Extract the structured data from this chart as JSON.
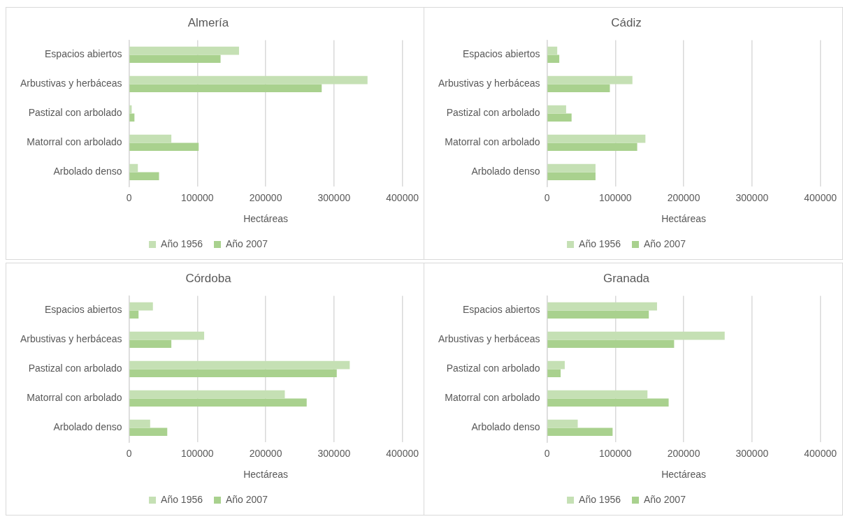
{
  "chart_data": [
    {
      "type": "bar",
      "orientation": "horizontal",
      "title": "Almería",
      "xlabel": "Hectáreas",
      "categories": [
        "Espacios abiertos",
        "Arbustivas y herbáceas",
        "Pastizal con arbolado",
        "Matorral con arbolado",
        "Arbolado denso"
      ],
      "series": [
        {
          "name": "Año 1956",
          "color": "#c5e0b4",
          "values": [
            161000,
            349000,
            4000,
            62000,
            13000
          ]
        },
        {
          "name": "Año 2007",
          "color": "#a9d18e",
          "values": [
            134000,
            282000,
            8000,
            102000,
            44000
          ]
        }
      ],
      "xlim": [
        0,
        400000
      ],
      "xticks": [
        0,
        100000,
        200000,
        300000,
        400000
      ],
      "grid": "x",
      "legend": "bottom"
    },
    {
      "type": "bar",
      "orientation": "horizontal",
      "title": "Cádiz",
      "xlabel": "Hectáreas",
      "categories": [
        "Espacios abiertos",
        "Arbustivas y herbáceas",
        "Pastizal con arbolado",
        "Matorral con arbolado",
        "Arbolado denso"
      ],
      "series": [
        {
          "name": "Año 1956",
          "color": "#c5e0b4",
          "values": [
            15000,
            125000,
            28000,
            144000,
            71000
          ]
        },
        {
          "name": "Año 2007",
          "color": "#a9d18e",
          "values": [
            18000,
            92000,
            36000,
            132000,
            71000
          ]
        }
      ],
      "xlim": [
        0,
        400000
      ],
      "xticks": [
        0,
        100000,
        200000,
        300000,
        400000
      ],
      "grid": "x",
      "legend": "bottom"
    },
    {
      "type": "bar",
      "orientation": "horizontal",
      "title": "Córdoba",
      "xlabel": "Hectáreas",
      "categories": [
        "Espacios abiertos",
        "Arbustivas y herbáceas",
        "Pastizal con arbolado",
        "Matorral con arbolado",
        "Arbolado denso"
      ],
      "series": [
        {
          "name": "Año 1956",
          "color": "#c5e0b4",
          "values": [
            35000,
            110000,
            323000,
            228000,
            31000
          ]
        },
        {
          "name": "Año 2007",
          "color": "#a9d18e",
          "values": [
            14000,
            62000,
            304000,
            260000,
            56000
          ]
        }
      ],
      "xlim": [
        0,
        400000
      ],
      "xticks": [
        0,
        100000,
        200000,
        300000,
        400000
      ],
      "grid": "x",
      "legend": "bottom"
    },
    {
      "type": "bar",
      "orientation": "horizontal",
      "title": "Granada",
      "xlabel": "Hectáreas",
      "categories": [
        "Espacios abiertos",
        "Arbustivas y herbáceas",
        "Pastizal con arbolado",
        "Matorral con arbolado",
        "Arbolado denso"
      ],
      "series": [
        {
          "name": "Año 1956",
          "color": "#c5e0b4",
          "values": [
            161000,
            260000,
            26000,
            147000,
            45000
          ]
        },
        {
          "name": "Año 2007",
          "color": "#a9d18e",
          "values": [
            149000,
            186000,
            20000,
            178000,
            96000
          ]
        }
      ],
      "xlim": [
        0,
        400000
      ],
      "xticks": [
        0,
        100000,
        200000,
        300000,
        400000
      ],
      "grid": "x",
      "legend": "bottom"
    }
  ]
}
